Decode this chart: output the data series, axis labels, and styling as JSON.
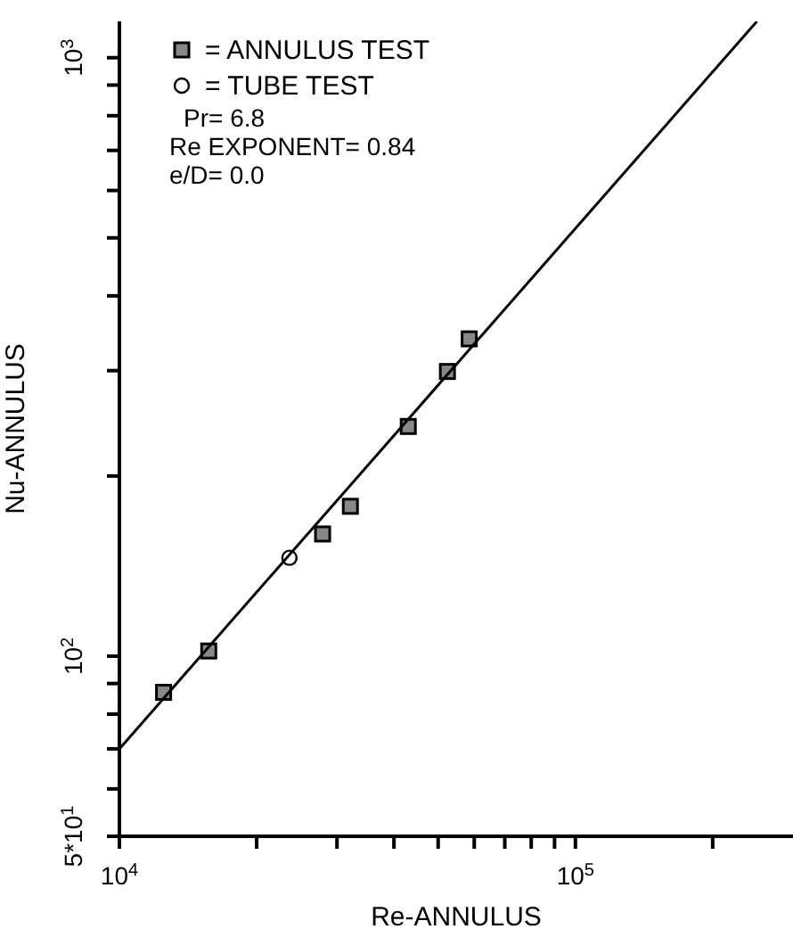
{
  "chart_data": {
    "type": "scatter",
    "xlabel": "Re-ANNULUS",
    "ylabel": "Nu-ANNULUS",
    "log": "xy",
    "xlim": [
      10000,
      300000
    ],
    "ylim": [
      50,
      1150
    ],
    "xticks": [
      {
        "value": 10000,
        "label": "10$^{4}$"
      },
      {
        "value": 20000,
        "label": null
      },
      {
        "value": 30000,
        "label": null
      },
      {
        "value": 40000,
        "label": null
      },
      {
        "value": 50000,
        "label": null
      },
      {
        "value": 60000,
        "label": null
      },
      {
        "value": 70000,
        "label": null
      },
      {
        "value": 80000,
        "label": null
      },
      {
        "value": 90000,
        "label": null
      },
      {
        "value": 100000,
        "label": "10$^{5}$"
      },
      {
        "value": 200000,
        "label": null
      }
    ],
    "yticks": [
      {
        "value": 50,
        "label": "5*10$^{1}$"
      },
      {
        "value": 60,
        "label": null
      },
      {
        "value": 70,
        "label": null
      },
      {
        "value": 80,
        "label": null
      },
      {
        "value": 90,
        "label": null
      },
      {
        "value": 100,
        "label": "10$^{2}$"
      },
      {
        "value": 200,
        "label": null
      },
      {
        "value": 300,
        "label": null
      },
      {
        "value": 400,
        "label": null
      },
      {
        "value": 500,
        "label": null
      },
      {
        "value": 600,
        "label": null
      },
      {
        "value": 700,
        "label": null
      },
      {
        "value": 800,
        "label": null
      },
      {
        "value": 900,
        "label": null
      },
      {
        "value": 1000,
        "label": "10$^{3}$"
      }
    ],
    "legend": "top left",
    "annotations": [
      "Pr= 6.8",
      "Re EXPONENT= 0.84",
      "e/D= 0.0"
    ],
    "series": [
      {
        "name": "= ANNULUS TEST",
        "marker": "square",
        "color": "#000000",
        "x": [
          12500,
          15700,
          27900,
          32100,
          43000,
          52400,
          58500
        ],
        "values": [
          87,
          102,
          160,
          178,
          242,
          299,
          339
        ]
      },
      {
        "name": "= TUBE TEST",
        "marker": "circle",
        "color": "#000000",
        "x": [
          23600
        ],
        "values": [
          146
        ]
      },
      {
        "type": "line",
        "marker": "none",
        "line_style": "solid",
        "color": "#000000",
        "x": [
          10000,
          250000
        ],
        "values": [
          70,
          1150
        ]
      }
    ]
  }
}
